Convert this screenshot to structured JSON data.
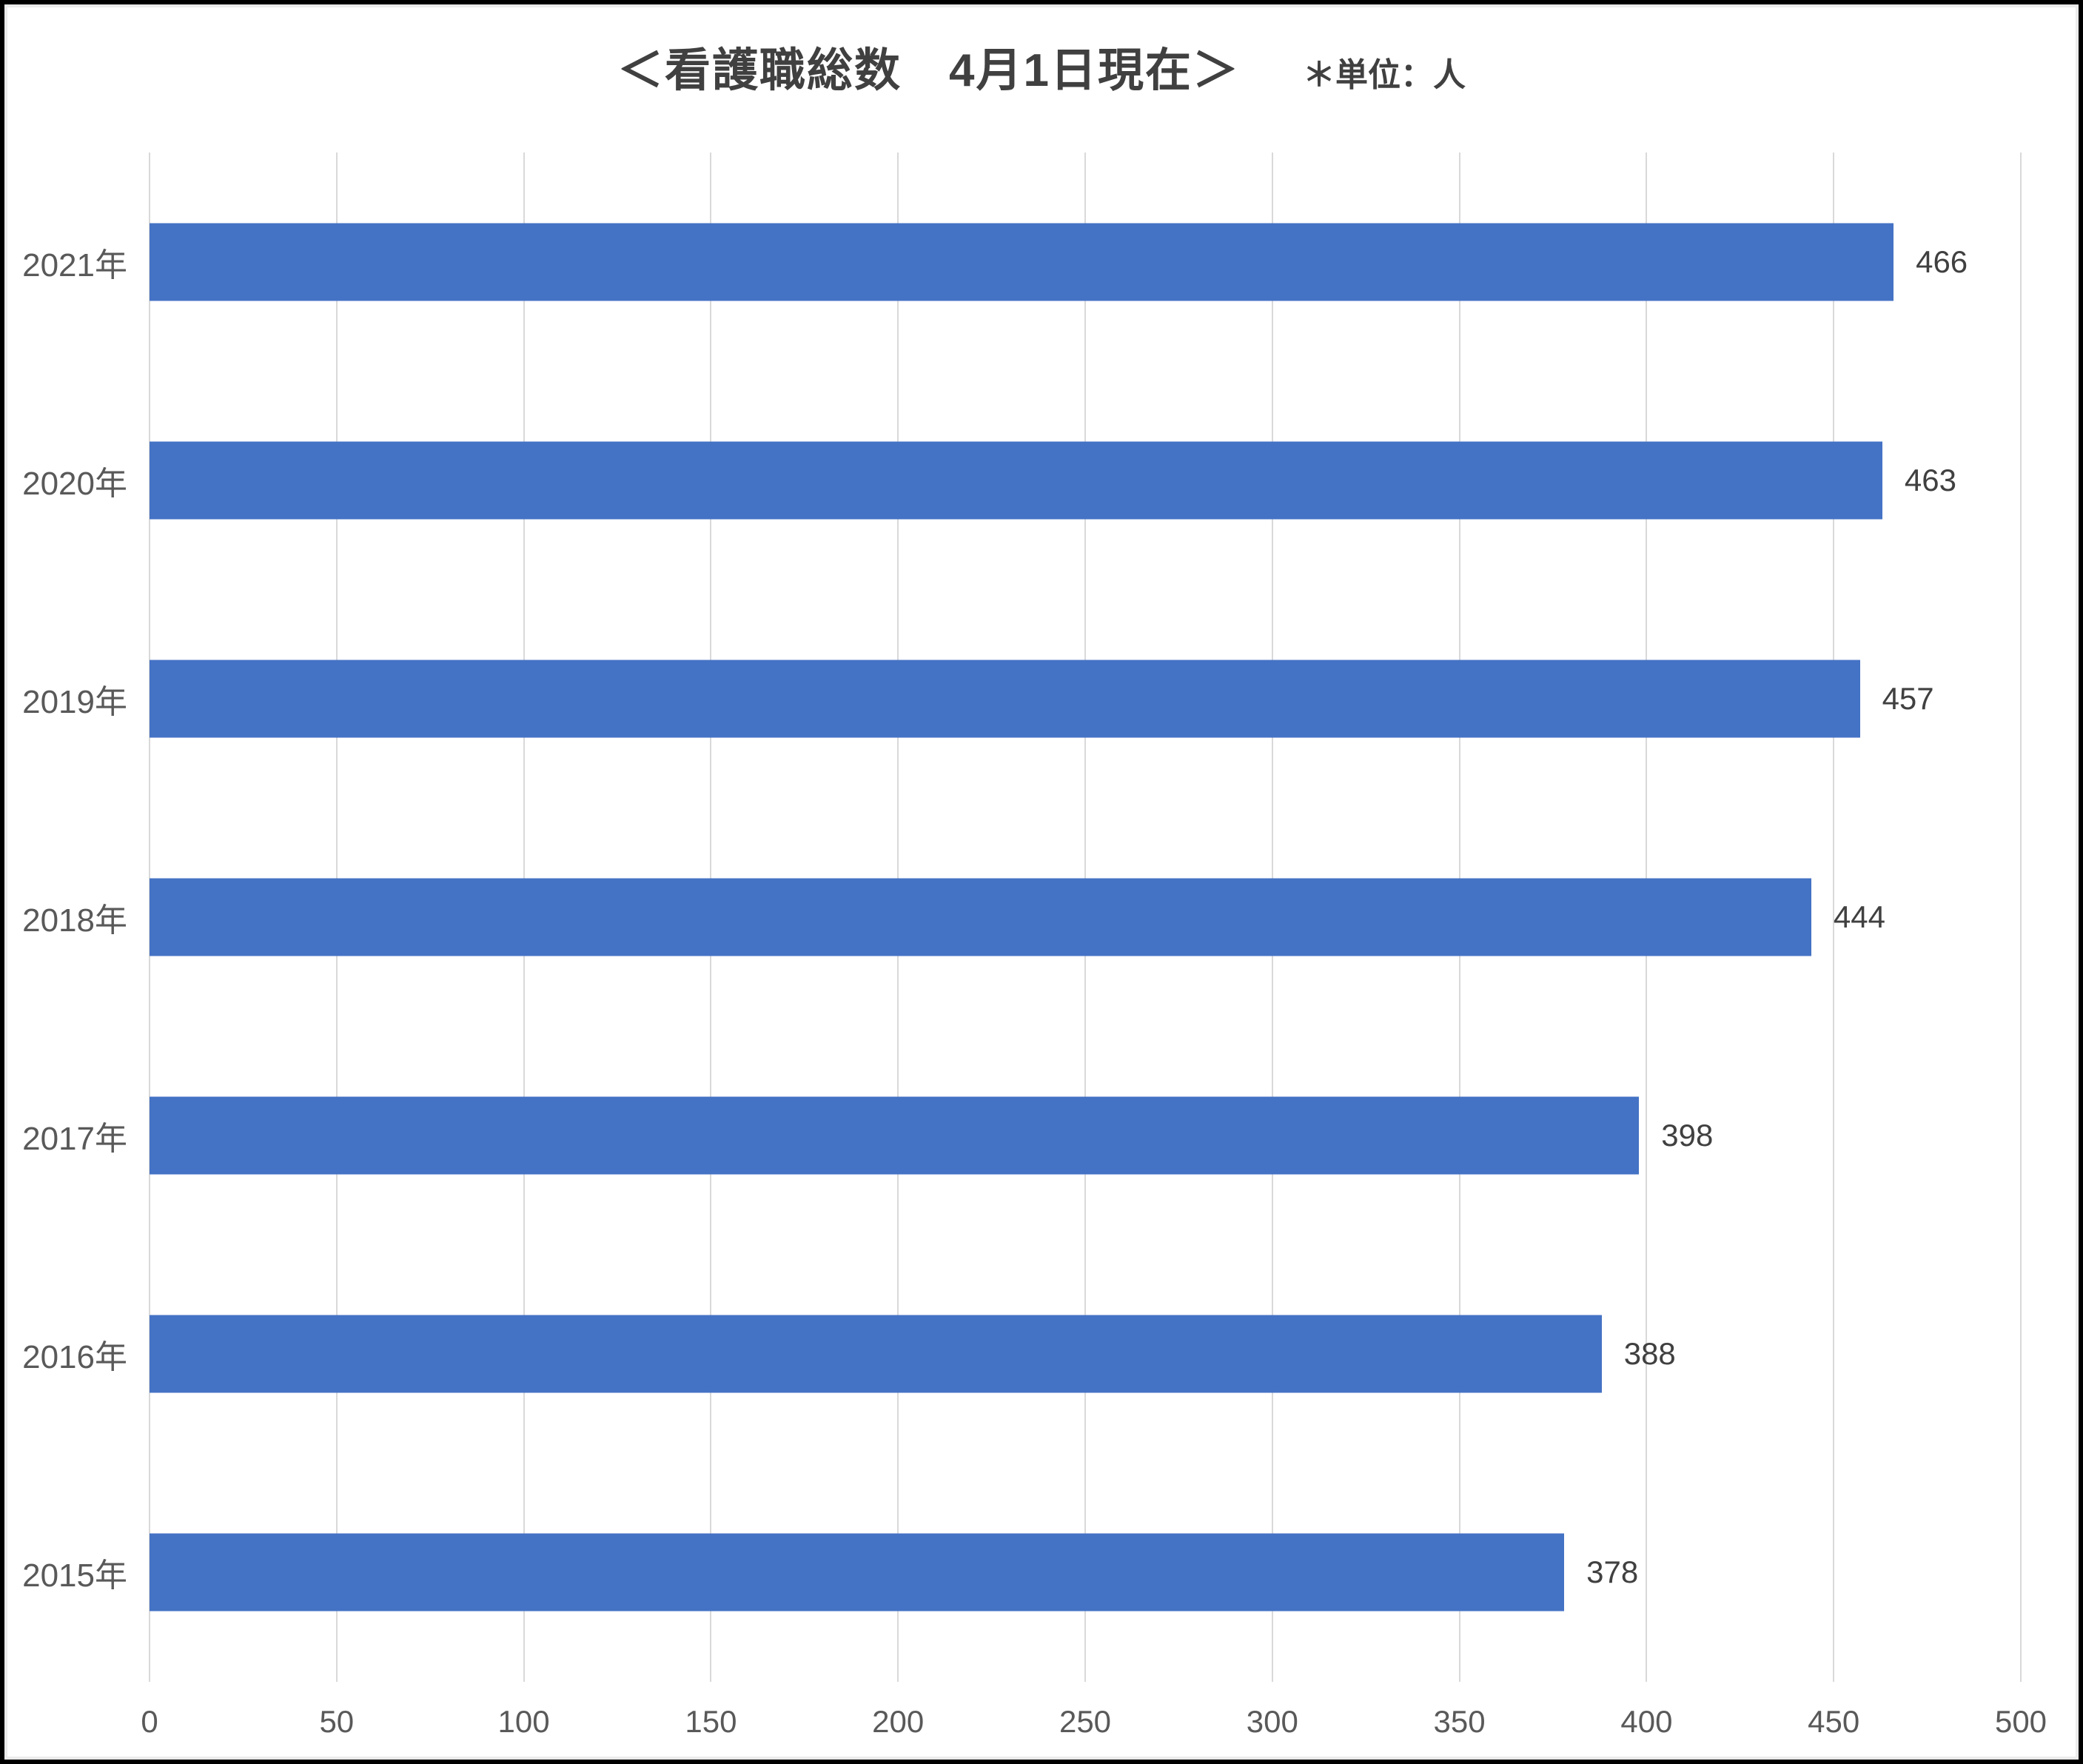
{
  "title": "＜看護職総数　4月1日現在＞",
  "unit_note": "＊単位：人",
  "chart_data": {
    "type": "bar",
    "orientation": "horizontal",
    "title": "＜看護職総数　4月1日現在＞",
    "subtitle": "＊単位：人",
    "categories": [
      "2021年",
      "2020年",
      "2019年",
      "2018年",
      "2017年",
      "2016年",
      "2015年"
    ],
    "values": [
      466,
      463,
      457,
      444,
      398,
      388,
      378
    ],
    "xlabel": "",
    "ylabel": "",
    "xlim": [
      0,
      500
    ],
    "xticks": [
      0,
      50,
      100,
      150,
      200,
      250,
      300,
      350,
      400,
      450,
      500
    ],
    "grid": true,
    "legend": "none",
    "data_labels": "outside-end",
    "colors": {
      "bar": "#4472c4",
      "gridline": "#d9d9d9",
      "tick_text": "#595959",
      "category_text": "#595959",
      "value_text": "#404040",
      "title_text": "#404040",
      "frame_border": "#000000",
      "background": "#ffffff"
    }
  }
}
